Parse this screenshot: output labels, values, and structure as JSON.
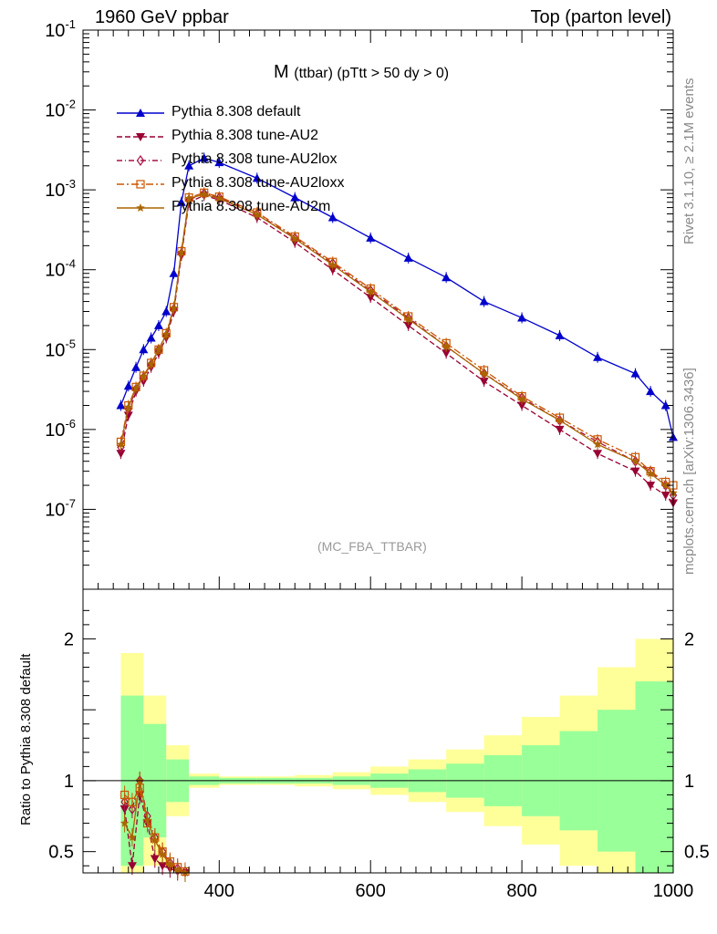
{
  "header": {
    "left": "1960 GeV ppbar",
    "right": "Top (parton level)"
  },
  "side_labels": {
    "rivet": "Rivet 3.1.10, ≥ 2.1M events",
    "mcplots": "mcplots.cern.ch [arXiv:1306.3436]"
  },
  "watermark": "(MC_FBA_TTBAR)",
  "plot_title": {
    "main": "M",
    "sub": "(ttbar) (pTtt > 50 dy > 0)"
  },
  "ratio_ylabel": "Ratio to Pythia 8.308 default",
  "chart_data": [
    {
      "type": "line",
      "panel": "main",
      "title": "M (ttbar) (pTtt > 50 dy > 0)",
      "yscale": "log",
      "xlim": [
        220,
        1000
      ],
      "ylim": [
        1e-08,
        0.1
      ],
      "x_ticks": [
        400,
        600,
        800,
        1000
      ],
      "y_tick_labels": [
        "10^-7",
        "10^-6",
        "10^-5",
        "10^-4",
        "10^-3",
        "10^-2",
        "10^-1"
      ],
      "x": [
        270,
        280,
        290,
        300,
        310,
        320,
        330,
        340,
        350,
        360,
        380,
        400,
        450,
        500,
        550,
        600,
        650,
        700,
        750,
        800,
        850,
        900,
        950,
        970,
        990,
        1000
      ],
      "series": [
        {
          "name": "Pythia 8.308 default",
          "color": "#0000cc",
          "marker": "triangle-up",
          "dash": "solid",
          "values": [
            2e-06,
            3.5e-06,
            6e-06,
            1e-05,
            1.4e-05,
            2e-05,
            3e-05,
            9e-05,
            0.0007,
            0.002,
            0.0025,
            0.0022,
            0.0014,
            0.0008,
            0.00045,
            0.00025,
            0.00014,
            8e-05,
            4e-05,
            2.5e-05,
            1.5e-05,
            8e-06,
            5e-06,
            3e-06,
            2e-06,
            8e-07
          ]
        },
        {
          "name": "Pythia 8.308 tune-AU2",
          "color": "#990033",
          "marker": "triangle-down",
          "dash": "dashed",
          "values": [
            5e-07,
            1.5e-06,
            3e-06,
            4e-06,
            6e-06,
            9e-06,
            1.4e-05,
            3e-05,
            0.00015,
            0.0007,
            0.00085,
            0.00075,
            0.00045,
            0.00022,
            0.0001,
            4.5e-05,
            2e-05,
            9e-06,
            4e-06,
            2e-06,
            1e-06,
            5e-07,
            3e-07,
            2e-07,
            1.5e-07,
            1.2e-07
          ]
        },
        {
          "name": "Pythia 8.308 tune-AU2lox",
          "color": "#aa1144",
          "marker": "diamond-open",
          "dash": "dashdot",
          "values": [
            6e-07,
            1.8e-06,
            3.2e-06,
            4.5e-06,
            6.5e-06,
            1e-05,
            1.5e-05,
            3.2e-05,
            0.00016,
            0.00075,
            0.0009,
            0.0008,
            0.0005,
            0.00025,
            0.00012,
            5.5e-05,
            2.5e-05,
            1.1e-05,
            5e-06,
            2.5e-06,
            1.3e-06,
            7e-07,
            4e-07,
            3e-07,
            2e-07,
            1.5e-07
          ]
        },
        {
          "name": "Pythia 8.308 tune-AU2loxx",
          "color": "#cc5500",
          "marker": "square-open",
          "dash": "dashdot2",
          "values": [
            7e-07,
            2e-06,
            3.4e-06,
            4.7e-06,
            6.8e-06,
            1e-05,
            1.6e-05,
            3.4e-05,
            0.00017,
            0.0008,
            0.00092,
            0.00082,
            0.00052,
            0.00026,
            0.000125,
            5.8e-05,
            2.6e-05,
            1.2e-05,
            5.5e-06,
            2.6e-06,
            1.4e-06,
            7.5e-07,
            4.5e-07,
            3e-07,
            2.2e-07,
            2e-07
          ]
        },
        {
          "name": "Pythia 8.308 tune-AU2m",
          "color": "#aa6600",
          "marker": "star",
          "dash": "solid",
          "values": [
            6.5e-07,
            1.9e-06,
            3.3e-06,
            4.6e-06,
            6.6e-06,
            1e-05,
            1.55e-05,
            3.3e-05,
            0.000165,
            0.00078,
            0.00088,
            0.00078,
            0.00049,
            0.000245,
            0.000115,
            5.3e-05,
            2.4e-05,
            1.1e-05,
            5e-06,
            2.4e-06,
            1.3e-06,
            6.5e-07,
            4e-07,
            2.8e-07,
            2e-07,
            1.6e-07
          ]
        }
      ],
      "legend": "top-left"
    },
    {
      "type": "line",
      "panel": "ratio",
      "ylabel": "Ratio to Pythia 8.308 default",
      "xlim": [
        220,
        1000
      ],
      "ylim": [
        0.35,
        2.35
      ],
      "y_ticks": [
        0.5,
        1,
        2
      ],
      "x_ticks": [
        400,
        600,
        800,
        1000
      ],
      "reference_line": 1,
      "band_x": [
        270,
        300,
        330,
        360,
        400,
        450,
        500,
        550,
        600,
        650,
        700,
        750,
        800,
        850,
        900,
        950,
        1000
      ],
      "band_inner_half": [
        0.6,
        0.4,
        0.15,
        0.03,
        0.02,
        0.02,
        0.02,
        0.03,
        0.05,
        0.08,
        0.12,
        0.18,
        0.25,
        0.35,
        0.5,
        0.7,
        0.9
      ],
      "band_outer_half": [
        0.9,
        0.6,
        0.25,
        0.05,
        0.03,
        0.03,
        0.04,
        0.06,
        0.1,
        0.15,
        0.22,
        0.32,
        0.45,
        0.6,
        0.8,
        1.0,
        1.3
      ],
      "band_colors": {
        "inner": "#99ff99",
        "outer": "#ffff99"
      },
      "ratio_x": [
        275,
        285,
        295,
        305,
        315,
        325,
        335,
        345,
        355
      ],
      "ratio_series": [
        {
          "name": "Pythia 8.308 tune-AU2",
          "color": "#990033",
          "values": [
            0.8,
            0.4,
            0.9,
            0.7,
            0.45,
            0.4,
            0.38,
            0.36,
            0.35
          ]
        },
        {
          "name": "Pythia 8.308 tune-AU2lox",
          "color": "#aa1144",
          "values": [
            0.85,
            0.8,
            1.0,
            0.75,
            0.6,
            0.5,
            0.42,
            0.38,
            0.36
          ]
        },
        {
          "name": "Pythia 8.308 tune-AU2loxx",
          "color": "#cc5500",
          "values": [
            0.9,
            0.85,
            0.95,
            0.7,
            0.6,
            0.5,
            0.43,
            0.39,
            0.36
          ]
        },
        {
          "name": "Pythia 8.308 tune-AU2m",
          "color": "#aa6600",
          "values": [
            0.7,
            0.6,
            1.0,
            0.72,
            0.58,
            0.48,
            0.41,
            0.37,
            0.35
          ]
        }
      ]
    }
  ]
}
